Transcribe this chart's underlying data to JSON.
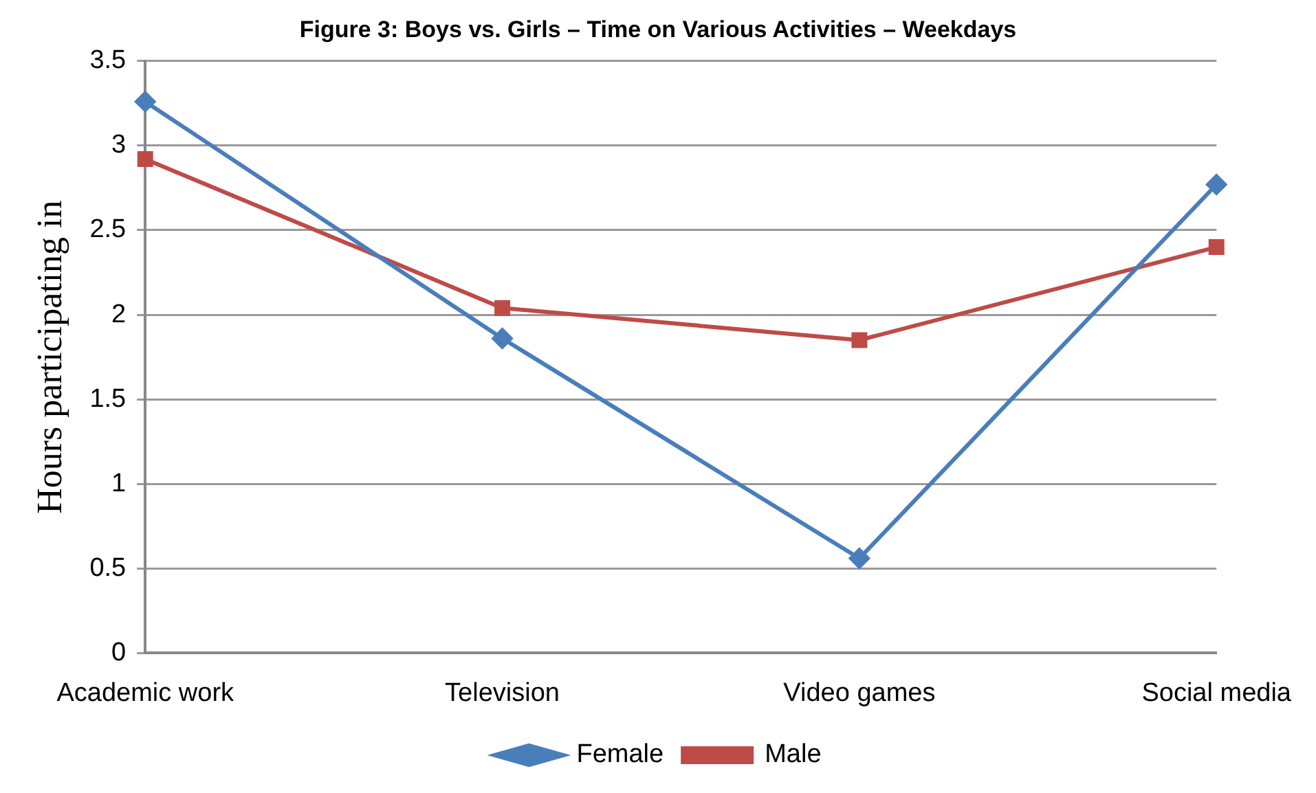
{
  "chart_data": {
    "type": "line",
    "title": "Figure 3: Boys vs. Girls – Time on Various Activities – Weekdays",
    "ylabel": "Hours participating in",
    "categories": [
      "Academic work",
      "Television",
      "Video games",
      "Social media"
    ],
    "series": [
      {
        "name": "Female",
        "color": "#4a7ebb",
        "values": [
          3.26,
          1.86,
          0.56,
          2.77
        ],
        "marker": "diamond"
      },
      {
        "name": "Male",
        "color": "#be4b48",
        "values": [
          2.92,
          2.04,
          1.85,
          2.4
        ],
        "marker": "square"
      }
    ],
    "ylim": [
      0,
      3.5
    ],
    "yticks": [
      0,
      0.5,
      1,
      1.5,
      2,
      2.5,
      3,
      3.5
    ],
    "grid": "y",
    "legend": "bottom"
  }
}
